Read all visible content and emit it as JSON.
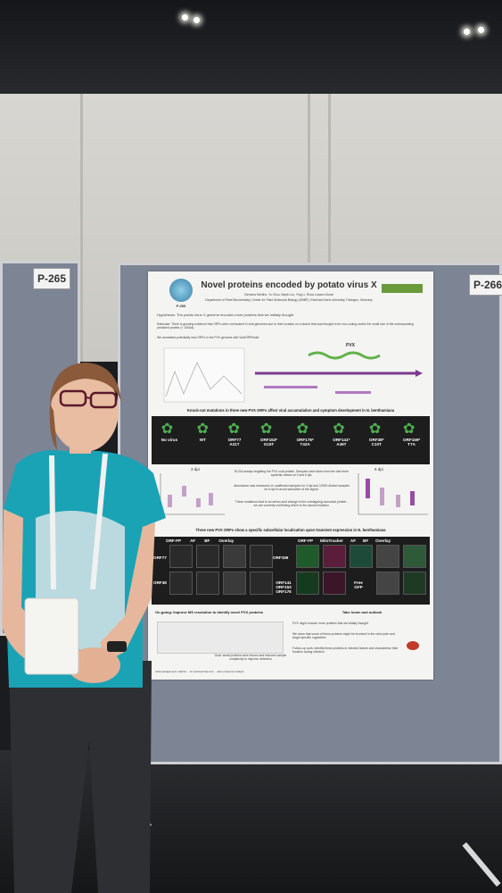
{
  "booth_left": "P-265",
  "booth_right": "P-266",
  "poster": {
    "title": "Novel proteins encoded by potato virus X",
    "authors": "Clemens Mertins, Yu Zhou, Mayli Luo, Ying Li, Rosa Lozano-Duran",
    "affiliation": "Department of Plant Biochemistry, Center for Plant Molecular Biology (ZMBP), Eberhard Karls University Tübingen, Germany",
    "logo_label": "P-266",
    "hypothesis": "Hypothesis: The potato virus X genome encodes more proteins that we initially thought",
    "rationale": "Rationale: There is growing evidence that ORFs were overlooked in viral genomes due to their location on a strand that was thought to be non-coding and/or the small size of the corresponding predicted protein (< 10kDa).",
    "annotation_note": "We annotated potentially new ORFs in the PVX genome with ViralORFfinder",
    "pvx_label": "PVX",
    "section_knockout": "Knock-out mutations in three new PVX ORFs affect viral accumulation and symptom development in N. benthamiana",
    "plants": [
      {
        "name": "No virus",
        "mut": ""
      },
      {
        "name": "WT",
        "mut": ""
      },
      {
        "name": "ORF77",
        "mut": "A31T"
      },
      {
        "name": "ORF153*",
        "mut": "G15T"
      },
      {
        "name": "ORF176*",
        "mut": "T43A"
      },
      {
        "name": "ORF141*",
        "mut": "A49T"
      },
      {
        "name": "ORF38*",
        "mut": "C10T"
      },
      {
        "name": "ORF159*",
        "mut": "T7A"
      }
    ],
    "dpi_left": "3 dpi",
    "dpi_right": "6 dpi",
    "elisa_note": "ELISA assays targeting the PVX coat protein. Samples were taken from the last three systemic leaves at 3 and 6 dpi.",
    "abundance_note": "Abundance was measured on unaffected samples for 3 dpi and 10000 diluted samples for 6 dpi to avoid saturation of the signal.",
    "mutation_note": "These mutations lead to an amino acid change in the overlapping canonical protein - we are currently confirming which is the causal mutation.",
    "section_localization": "Three new PVX ORFs show a specific subcellular localisation upon transient expression in N. benthamiana",
    "loc_headers_left": [
      "ORF-FP",
      "AF",
      "BF",
      "Overlay"
    ],
    "loc_headers_right": [
      "ORF-FP",
      "MitoTracker",
      "AF",
      "BF",
      "Overlay"
    ],
    "loc_rows_left": [
      "ORF77",
      "ORF38"
    ],
    "loc_rows_right": [
      "ORF159",
      "ORF141 ORF153 ORF176"
    ],
    "free_gfp": "Free GFP",
    "ongoing": "On-going: Improve MS resolution to identify novel PVX proteins",
    "take_home": "Take home and outlook",
    "take_home_1": "PVX might encode more proteins that we initially thought",
    "take_home_2": "We show that some of these proteins might be involved in the viral cycle and target specific organelles",
    "take_home_3": "Follow-up work: identify these proteins in infected leaves and characterise their function during infection",
    "ms_note": "Goal: small proteins were known and reduced sample complexity to improve detection",
    "acknowledgement": "Acknowledgements. Gabriel ... for technical help and ... other proteomic analysis"
  },
  "colors": {
    "shirt": "#1aa3b5",
    "board": "#7d8494",
    "poster_bg": "#f4f4f2",
    "plant_green": "#4caf50"
  }
}
